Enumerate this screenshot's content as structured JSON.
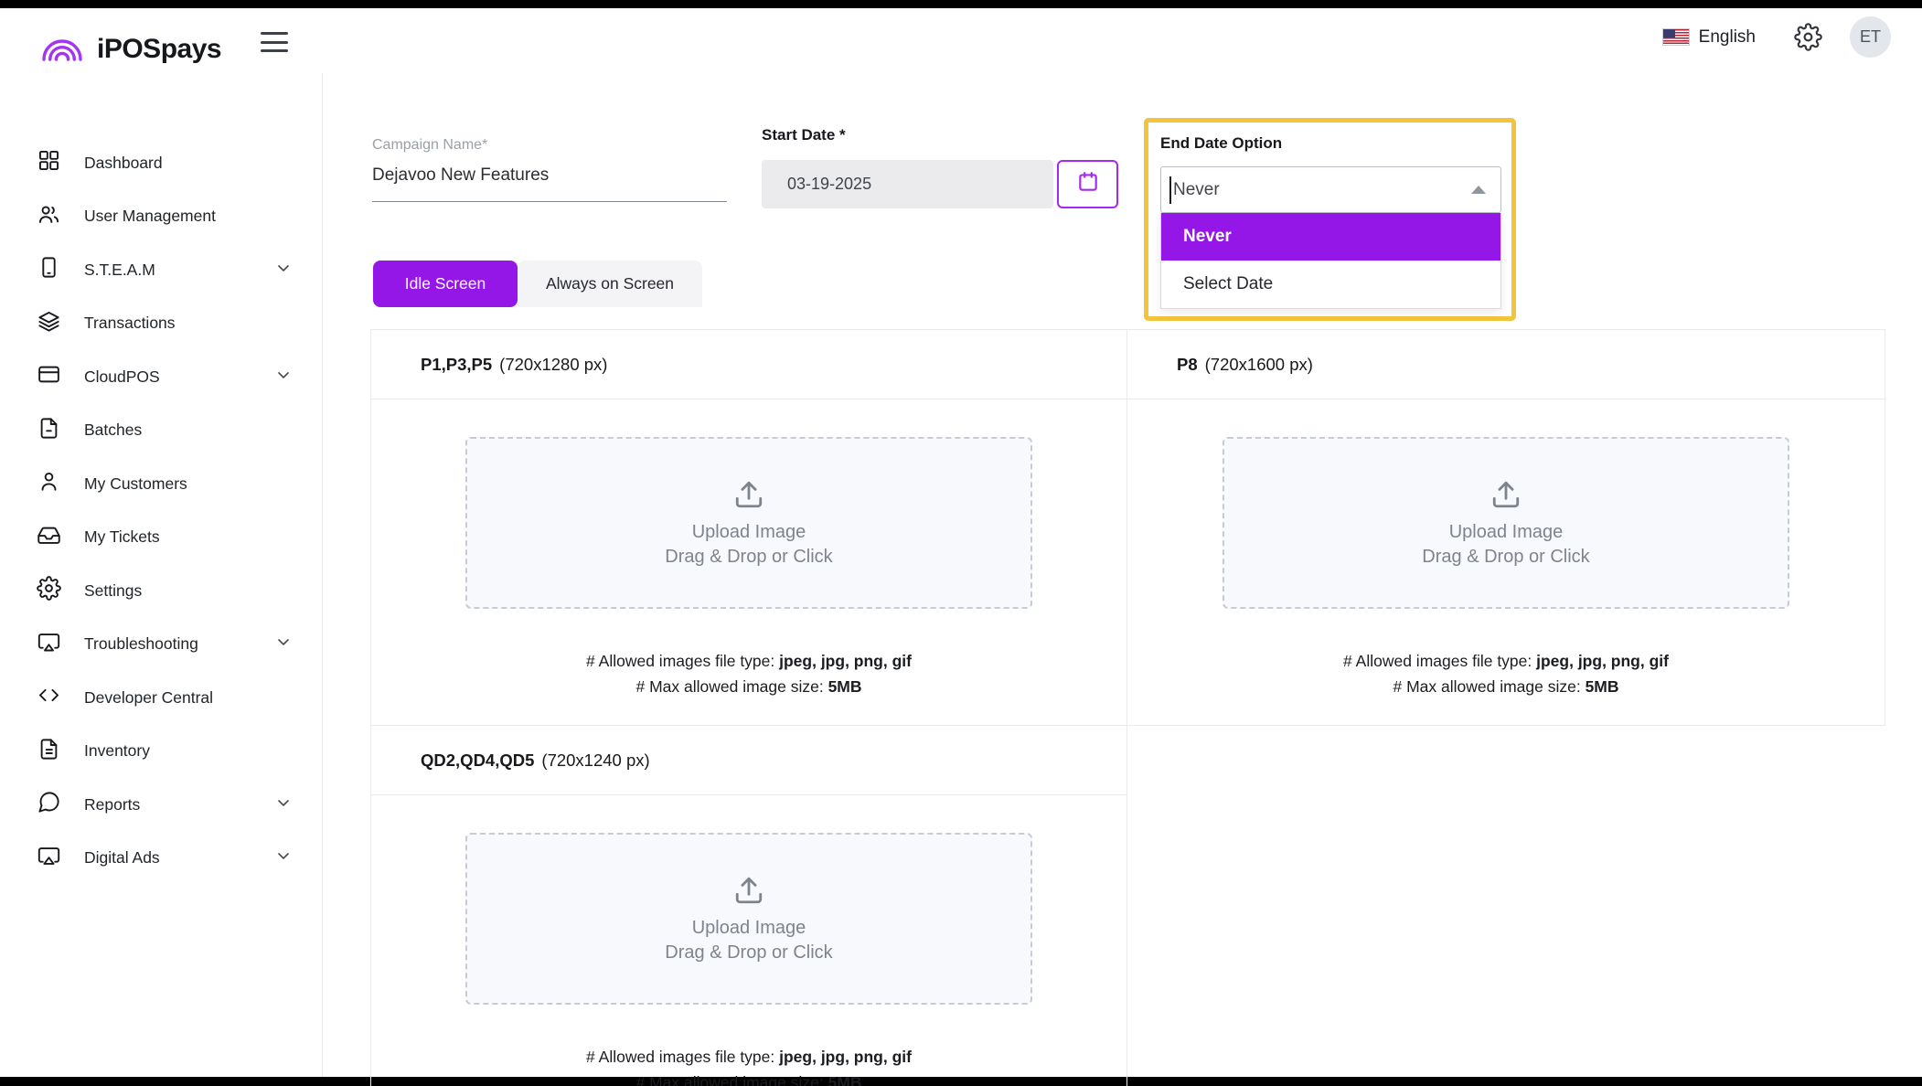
{
  "topbar": {
    "language": "English",
    "avatar_initials": "ET"
  },
  "sidebar": {
    "brand": "iPOSpays",
    "items": [
      {
        "label": "Dashboard",
        "icon": "dashboard-grid-icon",
        "expandable": false
      },
      {
        "label": "User Management",
        "icon": "users-icon",
        "expandable": false
      },
      {
        "label": "S.T.E.A.M",
        "icon": "device-icon",
        "expandable": true
      },
      {
        "label": "Transactions",
        "icon": "layers-icon",
        "expandable": false
      },
      {
        "label": "CloudPOS",
        "icon": "credit-card-icon",
        "expandable": true
      },
      {
        "label": "Batches",
        "icon": "file-icon",
        "expandable": false
      },
      {
        "label": "My Customers",
        "icon": "person-icon",
        "expandable": false
      },
      {
        "label": "My Tickets",
        "icon": "inbox-icon",
        "expandable": false
      },
      {
        "label": "Settings",
        "icon": "gear-icon",
        "expandable": false
      },
      {
        "label": "Troubleshooting",
        "icon": "screen-share-icon",
        "expandable": true
      },
      {
        "label": "Developer Central",
        "icon": "code-icon",
        "expandable": false
      },
      {
        "label": "Inventory",
        "icon": "document-icon",
        "expandable": false
      },
      {
        "label": "Reports",
        "icon": "chat-icon",
        "expandable": true
      },
      {
        "label": "Digital Ads",
        "icon": "ads-screen-icon",
        "expandable": true
      }
    ]
  },
  "form": {
    "campaign_name": {
      "label": "Campaign Name*",
      "value": "Dejavoo New Features"
    },
    "start_date": {
      "label": "Start Date *",
      "value": "03-19-2025"
    },
    "end_date_option": {
      "label": "End Date Option",
      "value": "Never",
      "options": [
        {
          "label": "Never",
          "selected": true
        },
        {
          "label": "Select Date",
          "selected": false
        }
      ]
    }
  },
  "tabs": [
    {
      "label": "Idle Screen",
      "active": true
    },
    {
      "label": "Always on Screen",
      "active": false
    }
  ],
  "upload": {
    "title": "Upload Image",
    "subtitle": "Drag & Drop or Click"
  },
  "notes": {
    "file_type_prefix": "# Allowed images file type: ",
    "file_type_value": "jpeg, jpg, png, gif",
    "size_prefix": "# Max allowed image size: ",
    "size_value": "5MB"
  },
  "panels": [
    {
      "name": "P1,P3,P5",
      "size": "(720x1280 px)"
    },
    {
      "name": "P8",
      "size": "(720x1600 px)"
    },
    {
      "name": "QD2,QD4,QD5",
      "size": "(720x1240 px)"
    }
  ],
  "colors": {
    "accent": "#9517e8",
    "highlight_border": "#f2c33d"
  }
}
